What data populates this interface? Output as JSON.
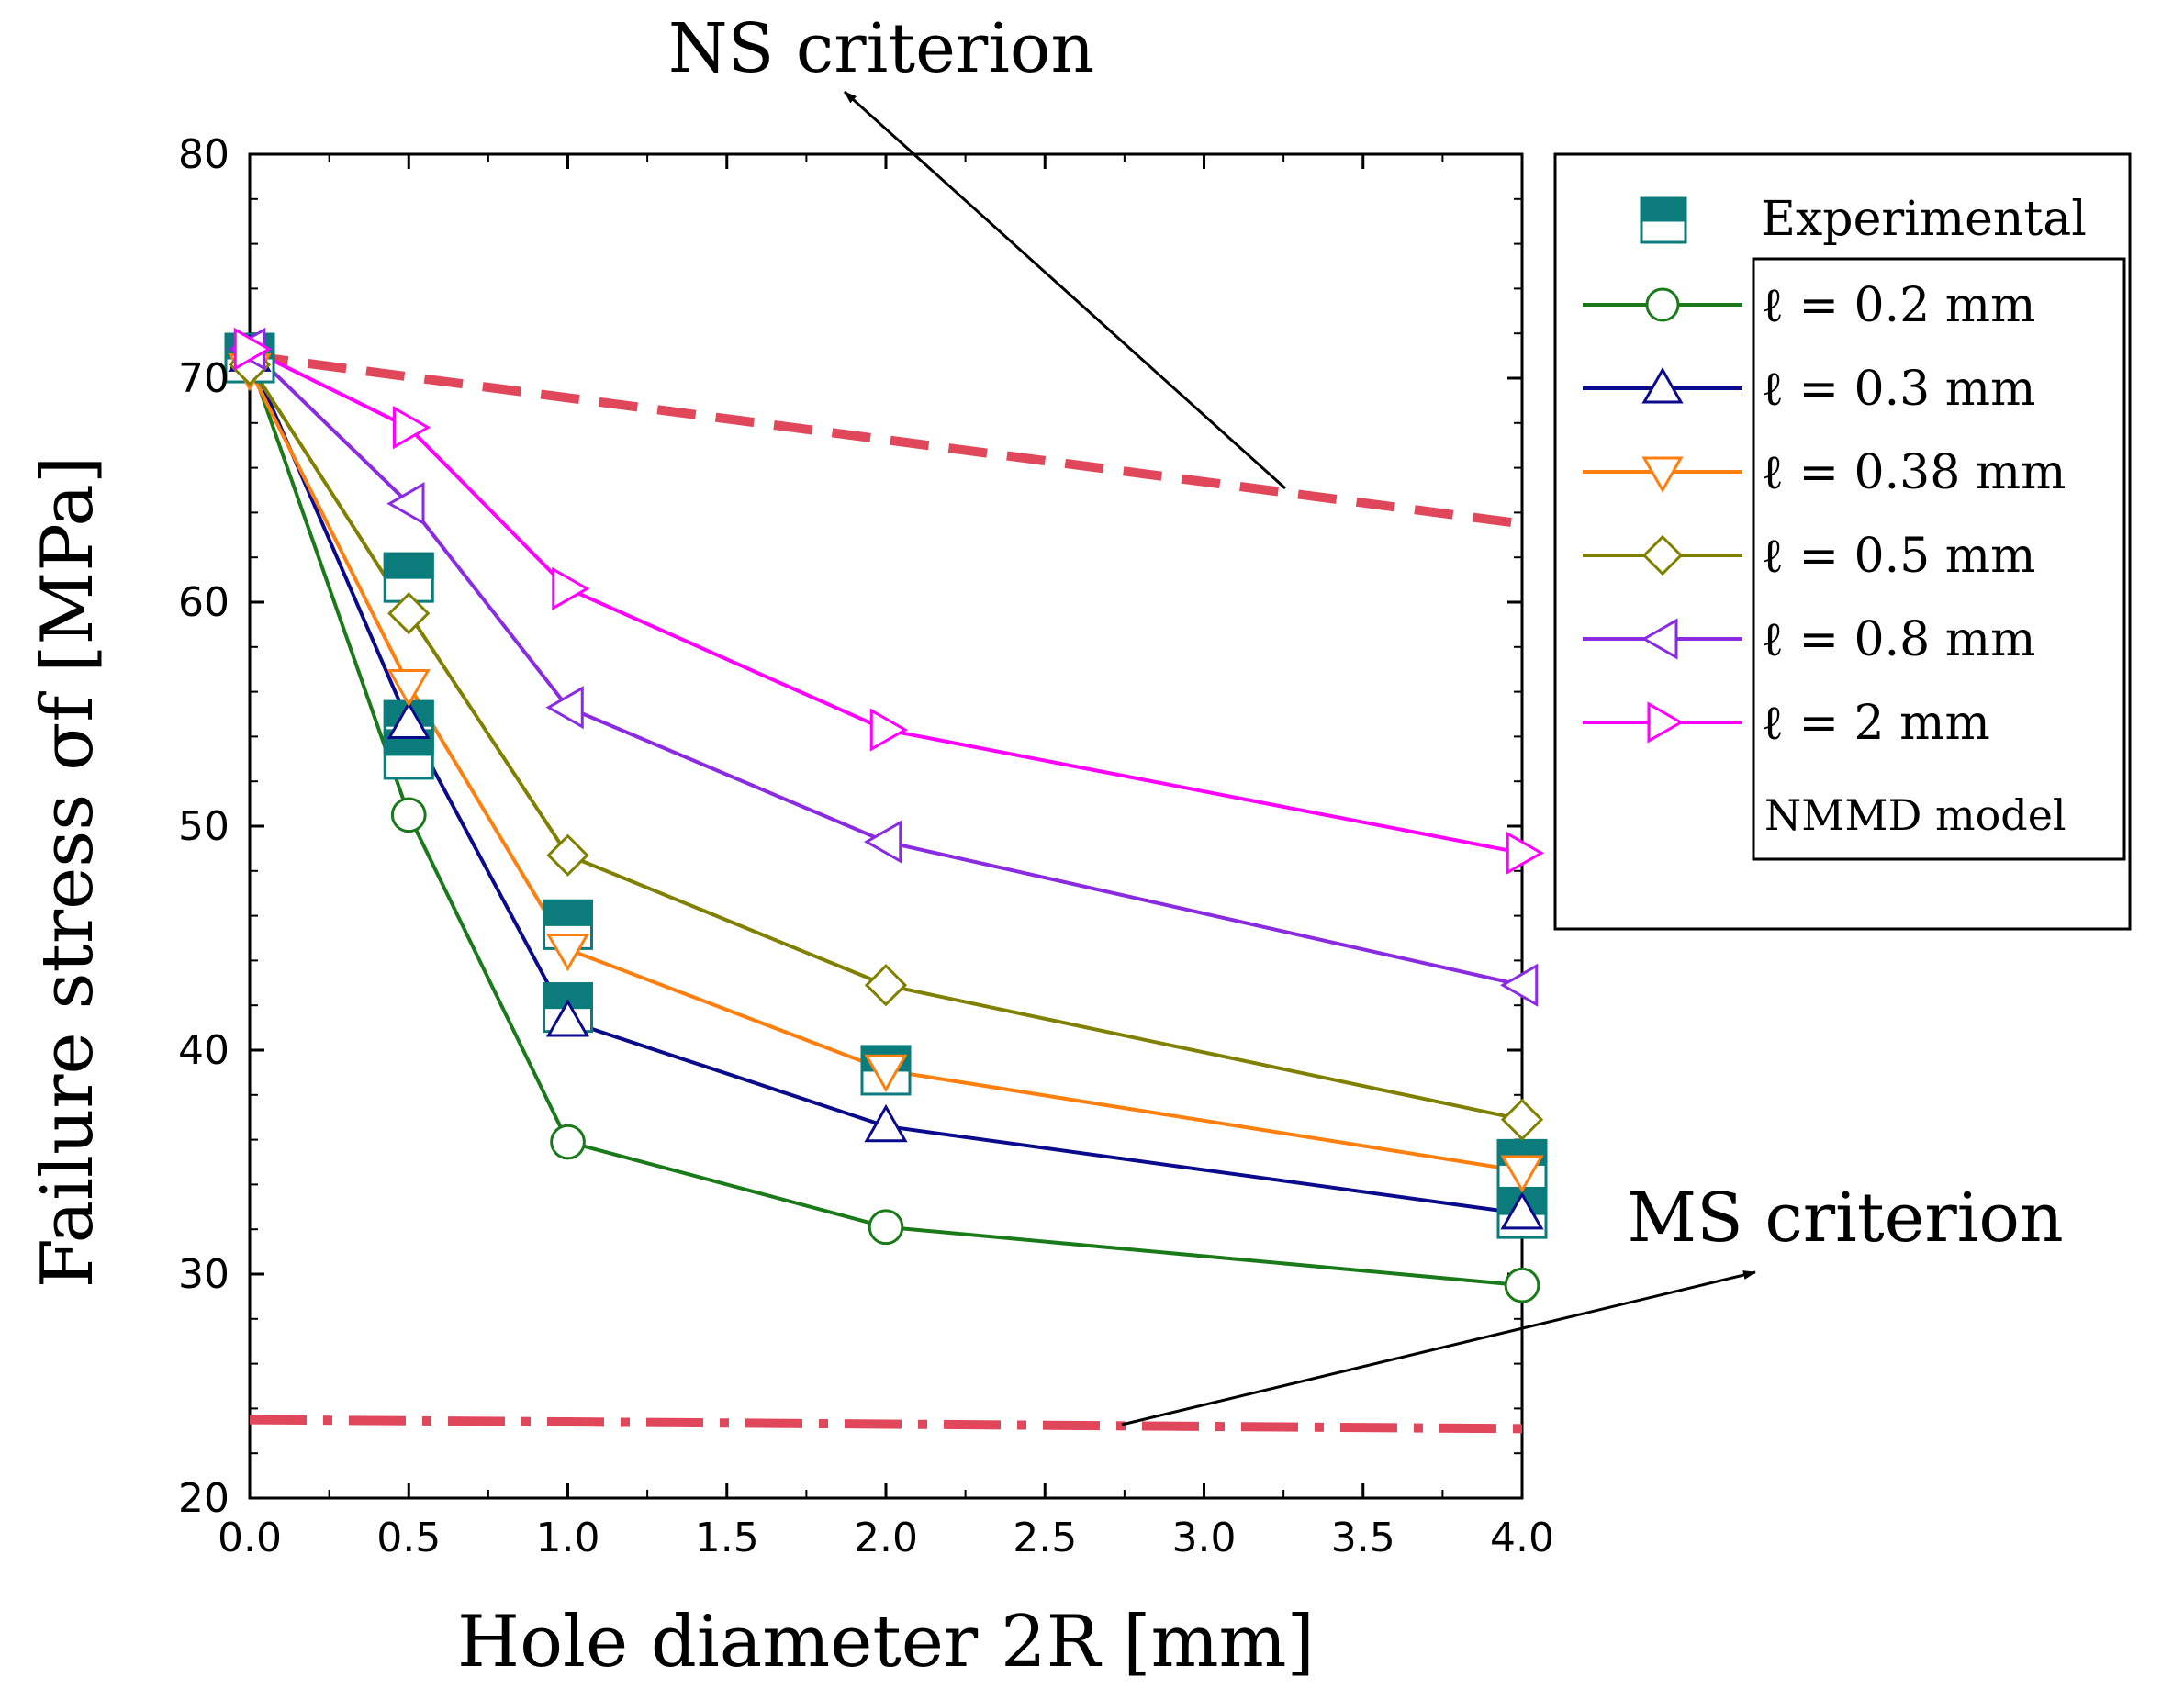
{
  "chart_data": {
    "type": "line",
    "x_axis": {
      "label": "Hole diameter 2R [mm]",
      "tick_labels": [
        "0.0",
        "0.5",
        "1.0",
        "1.5",
        "2.0",
        "2.5",
        "3.0",
        "3.5",
        "4.0"
      ]
    },
    "y_axis": {
      "label": "Failure stress σf [MPa]",
      "ylim": [
        20,
        80
      ],
      "ticks": [
        20,
        30,
        40,
        50,
        60,
        70,
        80
      ]
    },
    "x_positions": [
      0,
      0.5,
      1,
      2,
      4
    ],
    "series": [
      {
        "name": "ℓ = 0.2 mm",
        "marker": "circle",
        "color": "#1a7a1a",
        "values": [
          70.8,
          50.5,
          35.9,
          32.1,
          29.5
        ]
      },
      {
        "name": "ℓ = 0.3 mm",
        "marker": "triangle-up",
        "color": "#0a0a8c",
        "values": [
          71.0,
          54.6,
          41.3,
          36.6,
          32.7
        ]
      },
      {
        "name": "ℓ = 0.38 mm",
        "marker": "triangle-down",
        "color": "#ff7f0e",
        "values": [
          70.4,
          56.3,
          44.5,
          39.1,
          34.6
        ]
      },
      {
        "name": "ℓ = 0.5 mm",
        "marker": "diamond",
        "color": "#808000",
        "values": [
          70.6,
          59.5,
          48.7,
          42.9,
          36.9
        ]
      },
      {
        "name": "ℓ = 0.8 mm",
        "marker": "triangle-left",
        "color": "#8a2be2",
        "values": [
          71.3,
          64.4,
          55.3,
          49.3,
          42.9
        ]
      },
      {
        "name": "ℓ = 2 mm",
        "marker": "triangle-right",
        "color": "#ff00ff",
        "values": [
          71.3,
          67.8,
          60.6,
          54.3,
          48.8
        ]
      }
    ],
    "experimental": {
      "name": "Experimental",
      "color": "#0b7b7b",
      "points": [
        {
          "x": 0,
          "y": 70.9
        },
        {
          "x": 0.5,
          "y": 61.1
        },
        {
          "x": 0.5,
          "y": 54.5
        },
        {
          "x": 0.5,
          "y": 53.2
        },
        {
          "x": 1,
          "y": 45.6
        },
        {
          "x": 1,
          "y": 41.9
        },
        {
          "x": 2,
          "y": 39.1
        },
        {
          "x": 4,
          "y": 34.9
        },
        {
          "x": 4,
          "y": 32.7
        }
      ]
    },
    "criteria": [
      {
        "name": "NS criterion",
        "style": "dashed",
        "color": "#e0475a",
        "x": [
          0,
          4
        ],
        "y": [
          71.0,
          63.5
        ]
      },
      {
        "name": "MS criterion",
        "style": "dash-dot",
        "color": "#e0475a",
        "x": [
          0,
          4
        ],
        "y": [
          23.5,
          23.1
        ]
      }
    ],
    "annotations": [
      {
        "text": "NS criterion"
      },
      {
        "text": "MS criterion"
      }
    ],
    "legend": {
      "placement": "right-outside",
      "note": "NMMD model"
    }
  }
}
